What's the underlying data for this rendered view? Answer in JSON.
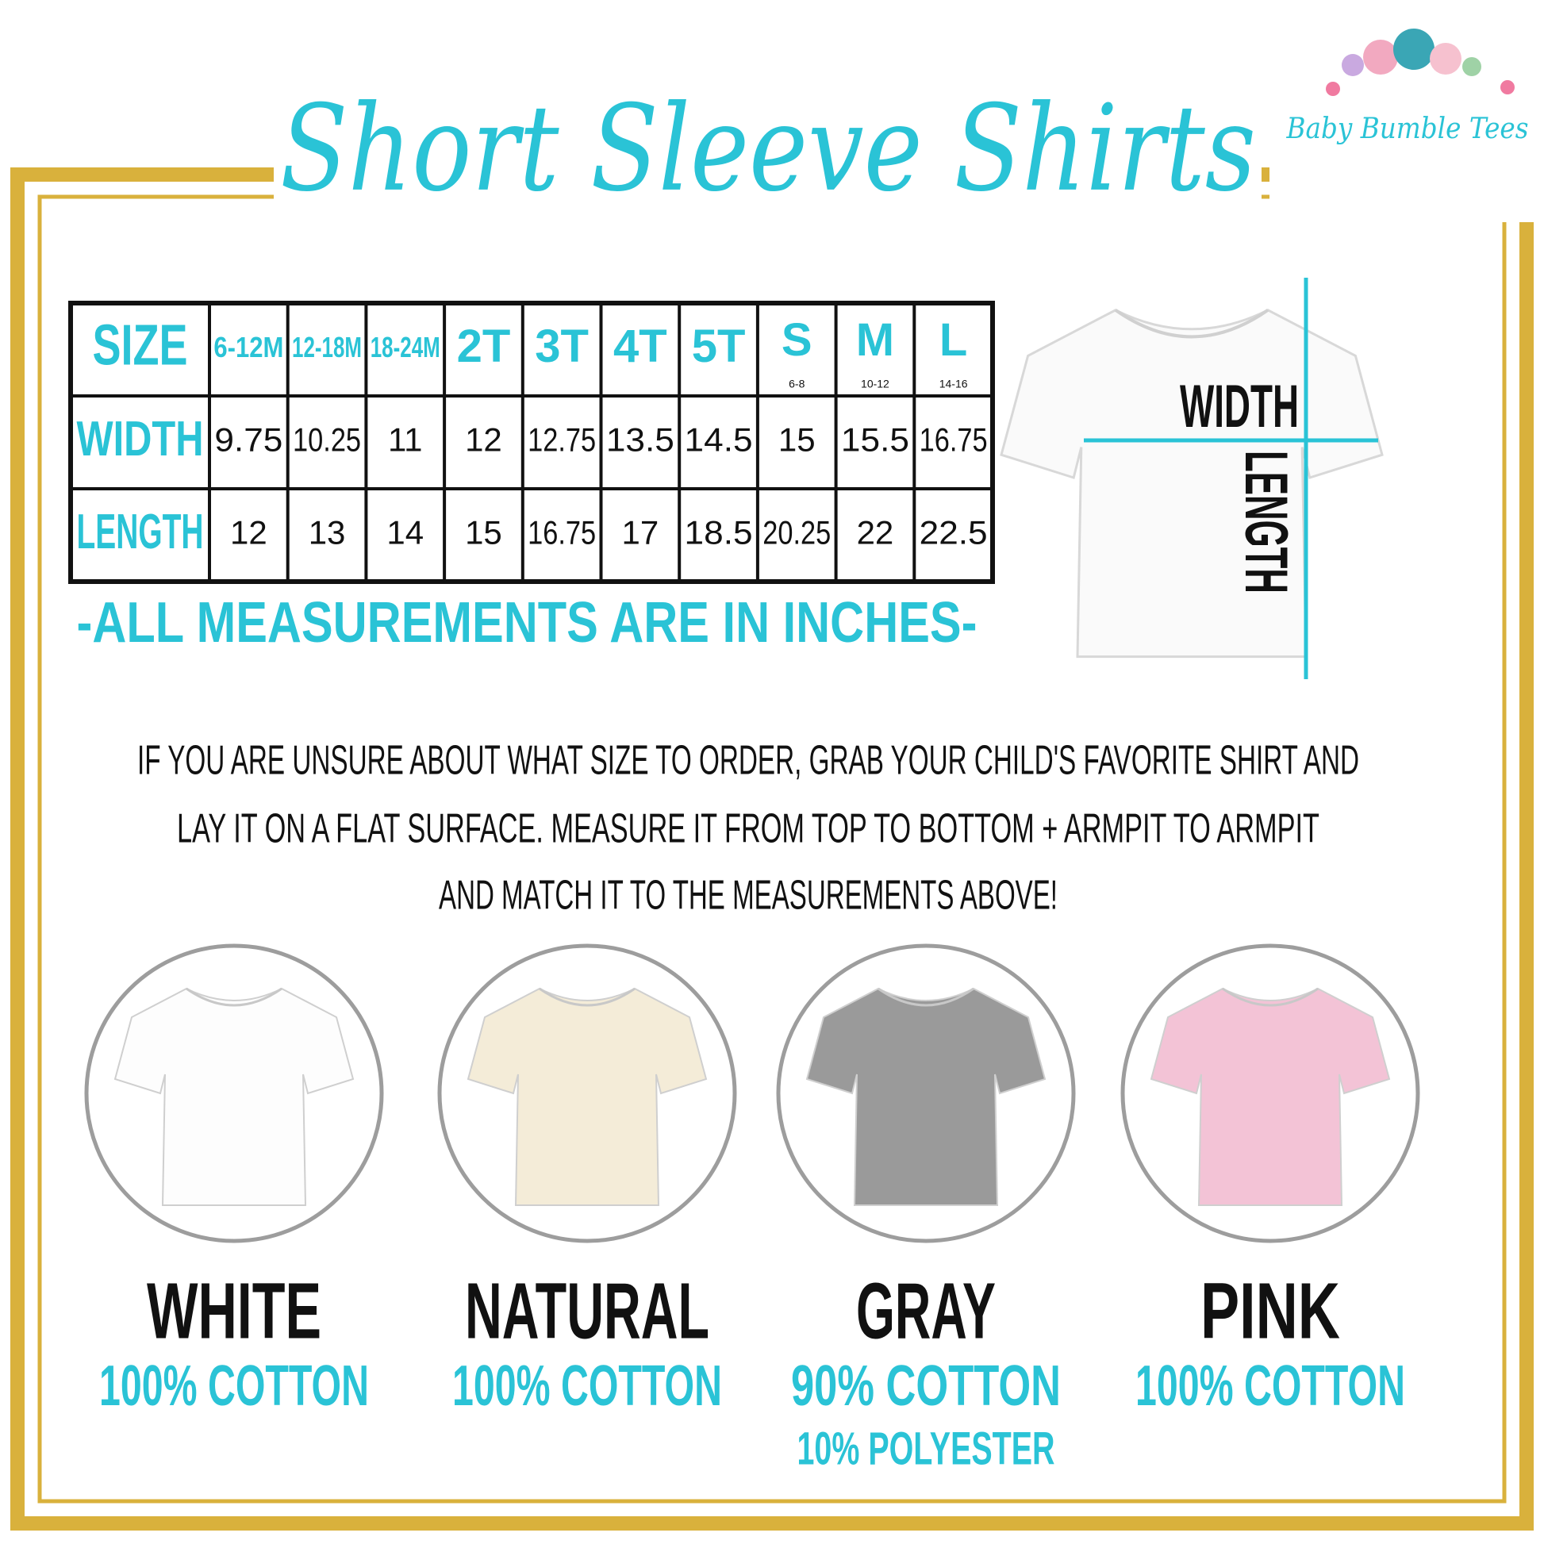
{
  "title": "Short Sleeve Shirts",
  "brand": "Baby Bumble Tees",
  "size_table": {
    "header": [
      {
        "label": "SIZE"
      },
      {
        "label": "6-12M"
      },
      {
        "label": "12-18M"
      },
      {
        "label": "18-24M"
      },
      {
        "label": "2T"
      },
      {
        "label": "3T"
      },
      {
        "label": "4T"
      },
      {
        "label": "5T"
      },
      {
        "label": "S",
        "note": "6-8"
      },
      {
        "label": "M",
        "note": "10-12"
      },
      {
        "label": "L",
        "note": "14-16"
      }
    ],
    "rows": [
      {
        "label": "WIDTH",
        "values": [
          9.75,
          10.25,
          11,
          12,
          12.75,
          13.5,
          14.5,
          15,
          15.5,
          16.75
        ]
      },
      {
        "label": "LENGTH",
        "values": [
          12,
          13,
          14,
          15,
          16.75,
          17,
          18.5,
          20.25,
          22,
          22.5
        ]
      }
    ]
  },
  "note": "-ALL MEASUREMENTS ARE IN INCHES-",
  "diagram": {
    "width_label": "WIDTH",
    "length_label": "LENGTH"
  },
  "instructions": [
    "IF YOU ARE UNSURE ABOUT WHAT SIZE TO ORDER, GRAB YOUR CHILD'S FAVORITE SHIRT AND",
    "LAY IT ON A FLAT SURFACE. MEASURE IT FROM TOP TO BOTTOM + ARMPIT TO ARMPIT",
    "AND MATCH IT TO THE MEASUREMENTS ABOVE!"
  ],
  "colors": [
    {
      "name": "WHITE",
      "fabric": [
        "100% COTTON"
      ]
    },
    {
      "name": "NATURAL",
      "fabric": [
        "100% COTTON"
      ]
    },
    {
      "name": "GRAY",
      "fabric": [
        "90% COTTON",
        "10% POLYESTER"
      ]
    },
    {
      "name": "PINK",
      "fabric": [
        "100% COTTON"
      ]
    }
  ]
}
